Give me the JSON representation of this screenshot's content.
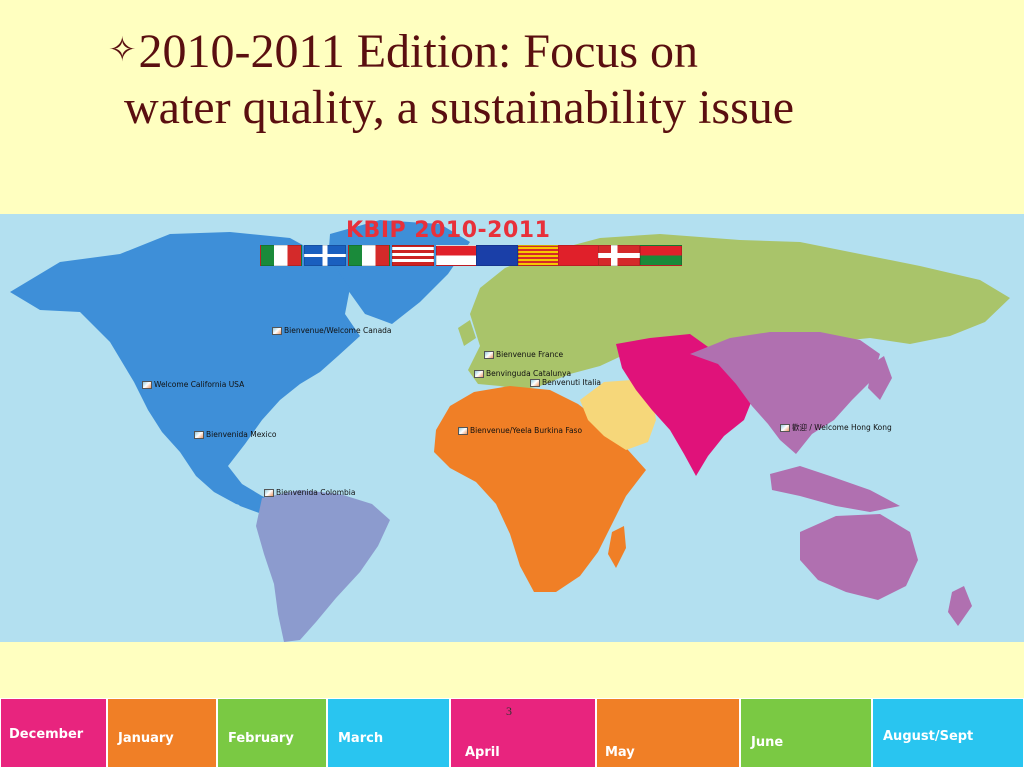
{
  "slide": {
    "title_line1": "2010-2011 Edition: Focus on",
    "title_line2": "water quality, a sustainability issue",
    "bullet_icon": "four-point-star-icon",
    "page_number": "3"
  },
  "map": {
    "title": "KBIP 2010-2011",
    "ocean_color": "#B3E0F0",
    "region_colors": {
      "north_america": "#3E8FD8",
      "south_america": "#8C9BCE",
      "europe_russia": "#A9C46A",
      "africa": "#F07F26",
      "middle_east": "#F6D77A",
      "south_asia": "#E0127A",
      "east_asia_oceania": "#B070B0"
    },
    "flags": [
      "mexico-flag",
      "quebec-flag",
      "italy-flag",
      "usa-flag",
      "singapore-flag",
      "alberta-flag",
      "catalonia-flag",
      "hong-kong-flag",
      "norway-flag",
      "burkina-faso-flag"
    ],
    "markers": [
      {
        "label": "Bienvenue/Welcome Canada"
      },
      {
        "label": "Welcome California USA"
      },
      {
        "label": "Bienvenida Mexico"
      },
      {
        "label": "Bienvenida Colombia"
      },
      {
        "label": "Bienvenue France"
      },
      {
        "label": "Benvinguda Catalunya"
      },
      {
        "label": "Benvenuti Italia"
      },
      {
        "label": "Bienvenue/Yeela Burkina Faso"
      },
      {
        "label": "歡迎 / Welcome Hong Kong"
      }
    ]
  },
  "months": [
    {
      "label": "December",
      "color": "#E8247E"
    },
    {
      "label": "January",
      "color": "#F07F26"
    },
    {
      "label": "February",
      "color": "#7AC943"
    },
    {
      "label": "March",
      "color": "#29C5F0"
    },
    {
      "label": "April",
      "color": "#E8247E"
    },
    {
      "label": "May",
      "color": "#F07F26"
    },
    {
      "label": "June",
      "color": "#7AC943"
    },
    {
      "label": "August/Sept",
      "color": "#29C5F0"
    }
  ]
}
